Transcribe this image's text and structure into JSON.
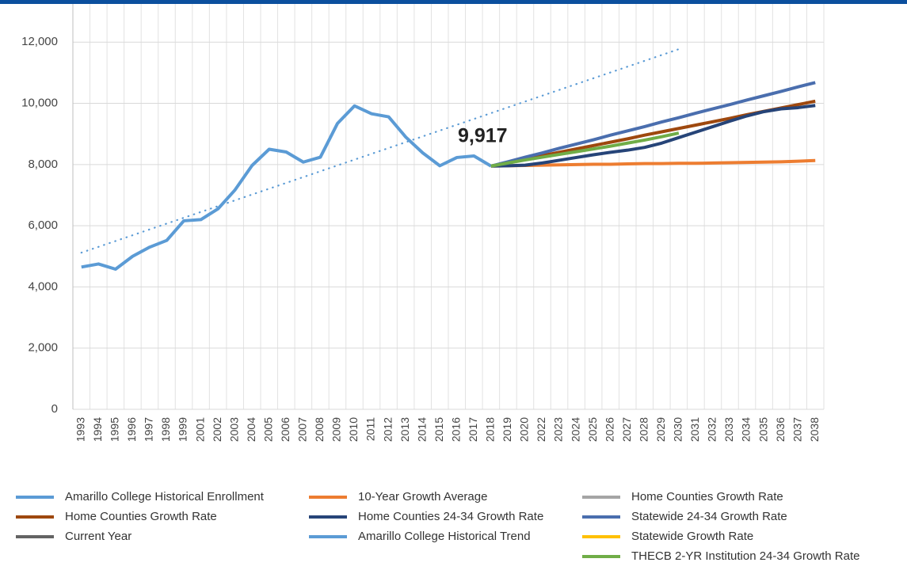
{
  "chart_data": {
    "type": "line",
    "categories": [
      "1993",
      "1994",
      "1995",
      "1996",
      "1997",
      "1998",
      "1999",
      "2001",
      "2002",
      "2003",
      "2004",
      "2005",
      "2006",
      "2007",
      "2008",
      "2009",
      "2010",
      "2011",
      "2012",
      "2013",
      "2014",
      "2015",
      "2016",
      "2017",
      "2018",
      "2019",
      "2020",
      "2022",
      "2023",
      "2024",
      "2025",
      "2026",
      "2027",
      "2028",
      "2029",
      "2030",
      "2031",
      "2032",
      "2033",
      "2034",
      "2035",
      "2036",
      "2037",
      "2038"
    ],
    "ylim": [
      0,
      13000
    ],
    "yticks": [
      0,
      {
        "value": 2000,
        "label": "2,000"
      },
      {
        "value": 4000,
        "label": "4,000"
      },
      {
        "value": 6000,
        "label": "6,000"
      },
      {
        "value": 8000,
        "label": "8,000"
      },
      {
        "value": 10000,
        "label": "10,000"
      },
      {
        "value": 12000,
        "label": "12,000"
      }
    ],
    "grid": true,
    "series": [
      {
        "name": "Amarillo College Historical Enrollment",
        "color": "#5b9bd5",
        "values": [
          4650,
          4750,
          4580,
          5000,
          5300,
          5520,
          6160,
          6200,
          6550,
          7170,
          7970,
          8500,
          8410,
          8080,
          8240,
          9340,
          9917,
          9660,
          9560,
          8900,
          8380,
          7960,
          8230,
          8280,
          7950,
          null,
          null,
          null,
          null,
          null,
          null,
          null,
          null,
          null,
          null,
          null,
          null,
          null,
          null,
          null,
          null,
          null,
          null,
          null
        ],
        "value_labels": [
          null,
          null,
          null,
          null,
          null,
          null,
          null,
          null,
          null,
          null,
          null,
          null,
          null,
          null,
          null,
          null,
          "9,917",
          null,
          null,
          null,
          null,
          null,
          null,
          null,
          null,
          null,
          null,
          null,
          null,
          null,
          null,
          null,
          null,
          null,
          null,
          null,
          null,
          null,
          null,
          null,
          null,
          null,
          null,
          null
        ]
      },
      {
        "name": "Home Counties Growth Rate",
        "color": "#9e480e",
        "values": [
          null,
          null,
          null,
          null,
          null,
          null,
          null,
          null,
          null,
          null,
          null,
          null,
          null,
          null,
          null,
          null,
          null,
          null,
          null,
          null,
          null,
          null,
          null,
          null,
          7950,
          8060,
          8170,
          8290,
          8400,
          8510,
          8620,
          8730,
          8840,
          8960,
          9070,
          9180,
          9290,
          9400,
          9510,
          9630,
          9740,
          9850,
          9960,
          10070
        ]
      },
      {
        "name": "Current Year",
        "color": "#636363",
        "values": [
          null,
          null,
          null,
          null,
          null,
          null,
          null,
          null,
          null,
          null,
          null,
          null,
          null,
          null,
          null,
          null,
          null,
          null,
          null,
          null,
          null,
          null,
          null,
          null,
          null,
          null,
          null,
          null,
          null,
          null,
          null,
          null,
          null,
          null,
          null,
          null,
          null,
          null,
          null,
          null,
          null,
          null,
          null,
          null
        ]
      },
      {
        "name": "10-Year Growth Average",
        "color": "#ed7d31",
        "values": [
          null,
          null,
          null,
          null,
          null,
          null,
          null,
          null,
          null,
          null,
          null,
          null,
          null,
          null,
          null,
          null,
          null,
          null,
          null,
          null,
          null,
          null,
          null,
          null,
          7950,
          7960,
          7970,
          7980,
          7990,
          8000,
          8010,
          8010,
          8020,
          8030,
          8030,
          8040,
          8040,
          8050,
          8060,
          8070,
          8080,
          8090,
          8110,
          8130
        ]
      },
      {
        "name": "Home Counties 24-34 Growth Rate",
        "color": "#264478",
        "values": [
          null,
          null,
          null,
          null,
          null,
          null,
          null,
          null,
          null,
          null,
          null,
          null,
          null,
          null,
          null,
          null,
          null,
          null,
          null,
          null,
          null,
          null,
          null,
          null,
          7950,
          7960,
          7980,
          8050,
          8140,
          8230,
          8320,
          8400,
          8470,
          8560,
          8700,
          8880,
          9060,
          9240,
          9420,
          9590,
          9730,
          9820,
          9860,
          9930
        ]
      },
      {
        "name": "Amarillo College Historical Trend",
        "color": "#5b9bd5",
        "dash": "dotted",
        "values": [
          5120,
          5310,
          5500,
          5690,
          5880,
          6070,
          6260,
          6450,
          6640,
          6830,
          7020,
          7210,
          7400,
          7590,
          7780,
          7970,
          8160,
          8350,
          8540,
          8730,
          8920,
          9110,
          9300,
          9490,
          9680,
          9870,
          10060,
          10250,
          10440,
          10630,
          10820,
          11010,
          11200,
          11390,
          11580,
          11770,
          null,
          null,
          null,
          null,
          null,
          null,
          null,
          null
        ]
      },
      {
        "name": "Home Counties Growth Rate",
        "color": "#a5a5a5",
        "values": [
          null,
          null,
          null,
          null,
          null,
          null,
          null,
          null,
          null,
          null,
          null,
          null,
          null,
          null,
          null,
          null,
          null,
          null,
          null,
          null,
          null,
          null,
          null,
          null,
          null,
          null,
          null,
          null,
          null,
          null,
          null,
          null,
          null,
          null,
          null,
          null,
          null,
          null,
          null,
          null,
          null,
          null,
          null,
          null
        ]
      },
      {
        "name": "Statewide 24-34 Growth Rate",
        "color": "#4a6eae",
        "values": [
          null,
          null,
          null,
          null,
          null,
          null,
          null,
          null,
          null,
          null,
          null,
          null,
          null,
          null,
          null,
          null,
          null,
          null,
          null,
          null,
          null,
          null,
          null,
          null,
          7950,
          8090,
          8240,
          8380,
          8530,
          8670,
          8810,
          8960,
          9100,
          9240,
          9390,
          9530,
          9680,
          9820,
          9960,
          10110,
          10250,
          10390,
          10540,
          10680
        ]
      },
      {
        "name": "Statewide Growth Rate",
        "color": "#ffc000",
        "values": [
          null,
          null,
          null,
          null,
          null,
          null,
          null,
          null,
          null,
          null,
          null,
          null,
          null,
          null,
          null,
          null,
          null,
          null,
          null,
          null,
          null,
          null,
          null,
          null,
          null,
          null,
          null,
          null,
          null,
          null,
          null,
          null,
          null,
          null,
          null,
          null,
          null,
          null,
          null,
          null,
          null,
          null,
          null,
          null
        ]
      },
      {
        "name": "THECB 2-YR Institution 24-34 Growth Rate",
        "color": "#70ad47",
        "values": [
          null,
          null,
          null,
          null,
          null,
          null,
          null,
          null,
          null,
          null,
          null,
          null,
          null,
          null,
          null,
          null,
          null,
          null,
          null,
          null,
          null,
          null,
          null,
          null,
          7950,
          8050,
          8150,
          8240,
          8330,
          8420,
          8510,
          8600,
          8700,
          8800,
          8910,
          9030,
          null,
          null,
          null,
          null,
          null,
          null,
          null,
          null
        ]
      }
    ]
  }
}
